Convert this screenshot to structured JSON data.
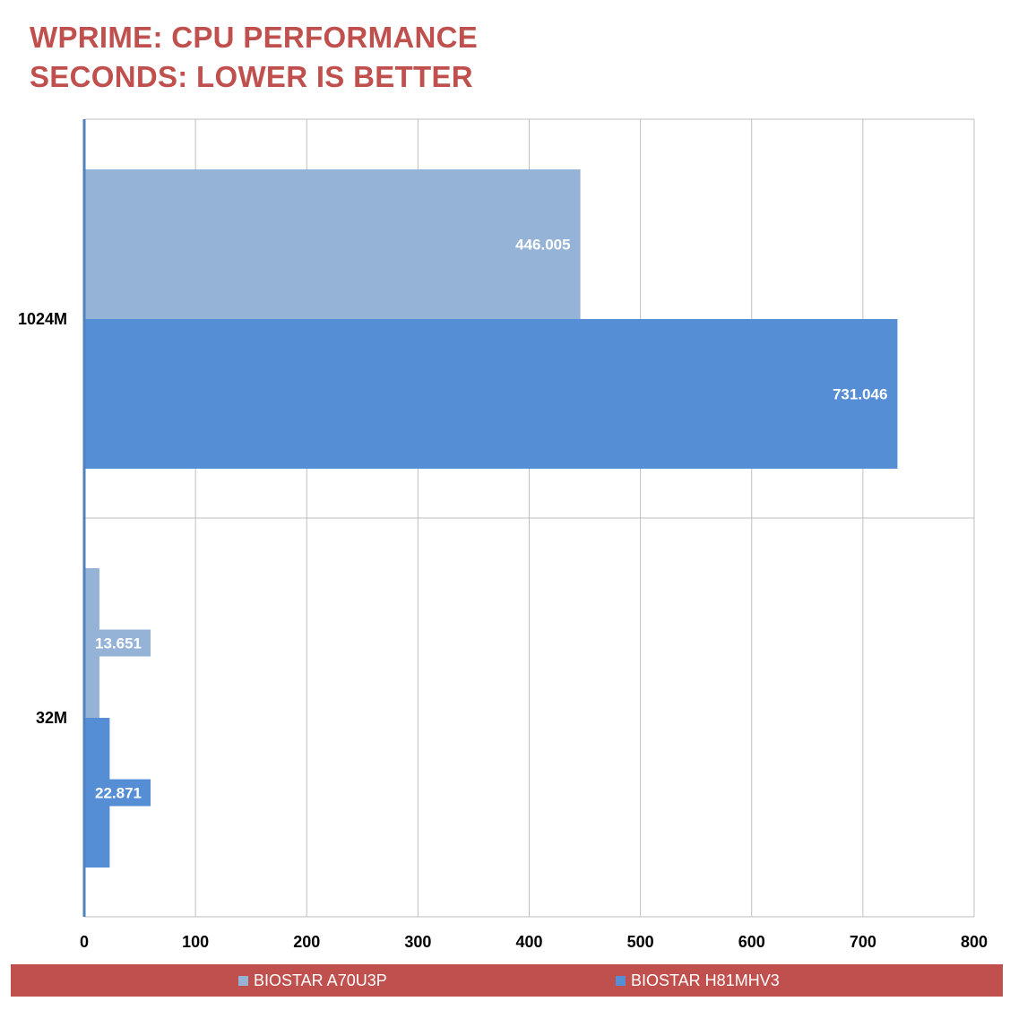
{
  "chart_data": {
    "type": "bar",
    "orientation": "horizontal",
    "title": "WPRIME: CPU PERFORMANCE",
    "subtitle": "SECONDS: LOWER IS BETTER",
    "categories": [
      "1024M",
      "32M"
    ],
    "series": [
      {
        "name": "BIOSTAR A70U3P",
        "values": [
          446.005,
          13.651
        ],
        "labels": [
          "446.005",
          "13.651"
        ]
      },
      {
        "name": "BIOSTAR H81MHV3",
        "values": [
          731.046,
          22.871
        ],
        "labels": [
          "731.046",
          "22.871"
        ]
      }
    ],
    "xlim": [
      0,
      800
    ],
    "xticks": [
      0,
      100,
      200,
      300,
      400,
      500,
      600,
      700,
      800
    ],
    "grid": true,
    "legend_position": "bottom",
    "colors": {
      "title": "#c0504d",
      "legend_background": "#c0504d",
      "series": [
        "#95b3d7",
        "#558ed5"
      ],
      "grid": "#bfbfbf",
      "axis": "#4f81bd"
    }
  }
}
